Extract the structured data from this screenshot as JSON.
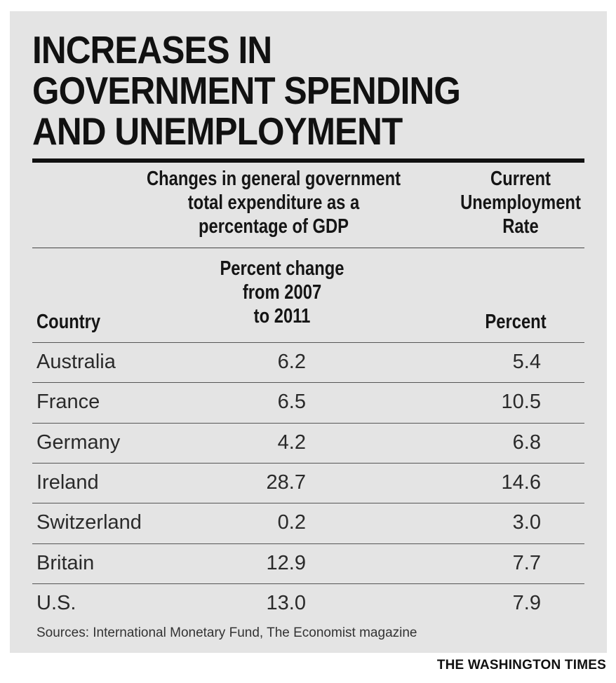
{
  "title_lines": [
    "INCREASES IN",
    "GOVERNMENT SPENDING",
    "AND UNEMPLOYMENT"
  ],
  "headers": {
    "gov_spending_lines": [
      "Changes in general government",
      "total expenditure as a",
      "percentage of GDP"
    ],
    "unemployment_lines": [
      "Current",
      "Unemployment",
      "Rate"
    ]
  },
  "subheaders": {
    "country": "Country",
    "gov_change_lines": [
      "Percent change",
      "from 2007",
      "to 2011"
    ],
    "unemployment_unit": "Percent"
  },
  "chart_data": {
    "type": "table",
    "title": "INCREASES IN GOVERNMENT SPENDING AND UNEMPLOYMENT",
    "columns": [
      "Country",
      "Percent change from 2007 to 2011",
      "Percent"
    ],
    "rows": [
      {
        "country": "Australia",
        "gov_change": "6.2",
        "unemployment": "5.4"
      },
      {
        "country": "France",
        "gov_change": "6.5",
        "unemployment": "10.5"
      },
      {
        "country": "Germany",
        "gov_change": "4.2",
        "unemployment": "6.8"
      },
      {
        "country": "Ireland",
        "gov_change": "28.7",
        "unemployment": "14.6"
      },
      {
        "country": "Switzerland",
        "gov_change": "0.2",
        "unemployment": "3.0"
      },
      {
        "country": "Britain",
        "gov_change": "12.9",
        "unemployment": "7.7"
      },
      {
        "country": "U.S.",
        "gov_change": "13.0",
        "unemployment": "7.9"
      }
    ]
  },
  "source": "Sources: International Monetary Fund, The Economist magazine",
  "credit": "THE WASHINGTON TIMES",
  "colors": {
    "panel": "#e4e4e4",
    "text": "#1a1a1a",
    "rule": "#111111"
  }
}
